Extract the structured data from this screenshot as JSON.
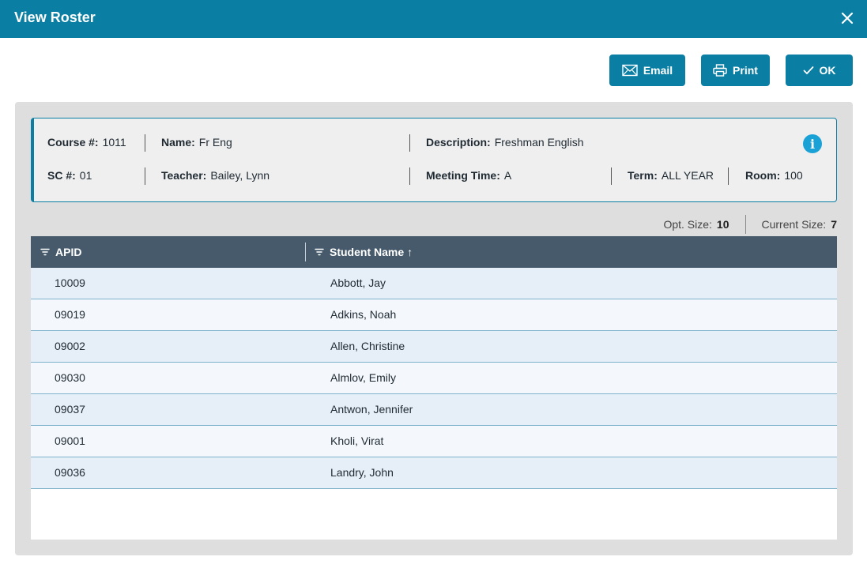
{
  "dialog": {
    "title": "View Roster"
  },
  "toolbar": {
    "email_label": "Email",
    "print_label": "Print",
    "ok_label": "OK"
  },
  "course": {
    "course_label": "Course #:",
    "course_value": "1011",
    "name_label": "Name:",
    "name_value": "Fr Eng",
    "description_label": "Description:",
    "description_value": "Freshman English",
    "sc_label": "SC #:",
    "sc_value": "01",
    "teacher_label": "Teacher:",
    "teacher_value": "Bailey, Lynn",
    "meeting_label": "Meeting Time:",
    "meeting_value": "A",
    "term_label": "Term:",
    "term_value": "ALL YEAR",
    "room_label": "Room:",
    "room_value": "100",
    "info_glyph": "i"
  },
  "sizes": {
    "opt_label": "Opt. Size:",
    "opt_value": "10",
    "current_label": "Current Size:",
    "current_value": "7"
  },
  "table": {
    "columns": [
      {
        "label": "APID"
      },
      {
        "label": "Student Name",
        "sort": "↑"
      }
    ],
    "rows": [
      {
        "apid": "10009",
        "name": "Abbott, Jay"
      },
      {
        "apid": "09019",
        "name": "Adkins, Noah"
      },
      {
        "apid": "09002",
        "name": "Allen, Christine"
      },
      {
        "apid": "09030",
        "name": "Almlov, Emily"
      },
      {
        "apid": "09037",
        "name": "Antwon, Jennifer"
      },
      {
        "apid": "09001",
        "name": "Kholi, Virat"
      },
      {
        "apid": "09036",
        "name": "Landry, John"
      }
    ]
  },
  "icons": {
    "close": "close-icon",
    "email": "envelope-icon",
    "print": "printer-icon",
    "ok": "checkmark-icon",
    "info": "info-icon",
    "filter": "filter-icon"
  },
  "colors": {
    "accent": "#0a7fa3",
    "header": "#465a6b",
    "info": "#1aa2d6"
  }
}
